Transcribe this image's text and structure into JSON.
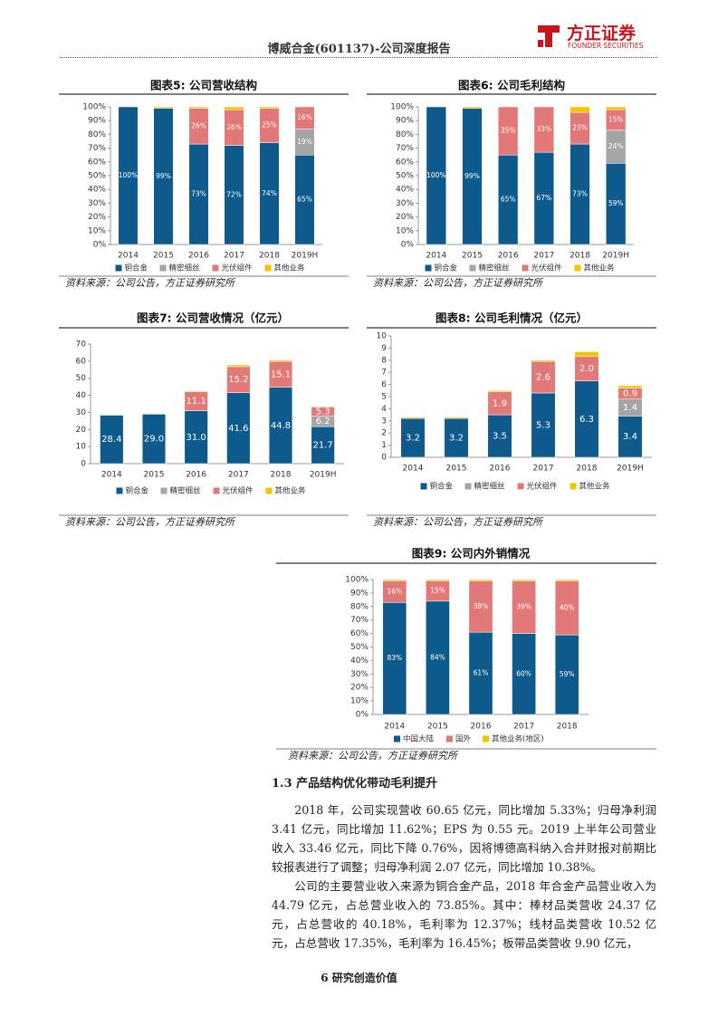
{
  "header": {
    "title": "博威合金(601137)-公司深度报告",
    "logo_name": "方正证券",
    "logo_en": "FOUNDER SECURITIES"
  },
  "chart_data": [
    {
      "type": "bar",
      "stacked": true,
      "title": "图表5:  公司营收结构",
      "source": "资料来源：公司公告，方正证券研究所",
      "categories": [
        "2014",
        "2015",
        "2016",
        "2017",
        "2018",
        "2019H"
      ],
      "ylim": [
        0,
        100
      ],
      "yticks": [
        {
          "value": 0,
          "label": "0%"
        },
        {
          "value": 10,
          "label": "10%"
        },
        {
          "value": 20,
          "label": "20%"
        },
        {
          "value": 30,
          "label": "30%"
        },
        {
          "value": 40,
          "label": "40%"
        },
        {
          "value": 50,
          "label": "50%"
        },
        {
          "value": 60,
          "label": "60%"
        },
        {
          "value": 70,
          "label": "70%"
        },
        {
          "value": 80,
          "label": "80%"
        },
        {
          "value": 90,
          "label": "90%"
        },
        {
          "value": 100,
          "label": "100%"
        }
      ],
      "series": [
        {
          "name": "铜合金",
          "color": "#0e5a8c",
          "values": [
            100,
            99,
            73,
            72,
            74,
            65
          ],
          "value_labels": [
            "100%",
            "99%",
            "73%",
            "72%",
            "74%",
            "65%"
          ]
        },
        {
          "name": "精密细丝",
          "color": "#a5a5a5",
          "values": [
            0,
            0,
            0,
            0,
            0,
            19
          ],
          "value_labels": [
            null,
            null,
            null,
            null,
            null,
            "19%"
          ]
        },
        {
          "name": "光伏组件",
          "color": "#e27878",
          "values": [
            0,
            0,
            26,
            26,
            25,
            16
          ],
          "value_labels": [
            null,
            null,
            "26%",
            "26%",
            "25%",
            "16%"
          ]
        },
        {
          "name": "其他业务",
          "color": "#f5c400",
          "values": [
            0,
            1,
            1,
            2,
            1,
            0
          ],
          "value_labels": [
            null,
            null,
            null,
            null,
            null,
            null
          ]
        }
      ]
    },
    {
      "type": "bar",
      "stacked": true,
      "title": "图表6:  公司毛利结构",
      "source": "资料来源：公司公告，方正证券研究所",
      "categories": [
        "2014",
        "2015",
        "2016",
        "2017",
        "2018",
        "2019H"
      ],
      "ylim": [
        0,
        100
      ],
      "yticks": [
        {
          "value": 0,
          "label": "0%"
        },
        {
          "value": 10,
          "label": "10%"
        },
        {
          "value": 20,
          "label": "20%"
        },
        {
          "value": 30,
          "label": "30%"
        },
        {
          "value": 40,
          "label": "40%"
        },
        {
          "value": 50,
          "label": "50%"
        },
        {
          "value": 60,
          "label": "60%"
        },
        {
          "value": 70,
          "label": "70%"
        },
        {
          "value": 80,
          "label": "80%"
        },
        {
          "value": 90,
          "label": "90%"
        },
        {
          "value": 100,
          "label": "100%"
        }
      ],
      "series": [
        {
          "name": "铜合金",
          "color": "#0e5a8c",
          "values": [
            100,
            99,
            65,
            67,
            73,
            59
          ],
          "value_labels": [
            "100%",
            "99%",
            "65%",
            "67%",
            "73%",
            "59%"
          ]
        },
        {
          "name": "精密细丝",
          "color": "#a5a5a5",
          "values": [
            0,
            0,
            0,
            0,
            0,
            24
          ],
          "value_labels": [
            null,
            null,
            null,
            null,
            null,
            "24%"
          ]
        },
        {
          "name": "光伏组件",
          "color": "#e27878",
          "values": [
            0,
            0,
            35,
            33,
            23,
            15
          ],
          "value_labels": [
            null,
            null,
            "35%",
            "33%",
            "23%",
            "15%"
          ]
        },
        {
          "name": "其他业务",
          "color": "#f5c400",
          "values": [
            0,
            1,
            0,
            0,
            4,
            2
          ],
          "value_labels": [
            null,
            null,
            null,
            null,
            null,
            null
          ]
        }
      ]
    },
    {
      "type": "bar",
      "stacked": true,
      "title": "图表7:  公司营收情况（亿元）",
      "source": "资料来源：公司公告，方正证券研究所",
      "categories": [
        "2014",
        "2015",
        "2016",
        "2017",
        "2018",
        "2019H"
      ],
      "ylim": [
        0,
        70
      ],
      "yticks": [
        0,
        10,
        20,
        30,
        40,
        50,
        60,
        70
      ],
      "series": [
        {
          "name": "铜合金",
          "color": "#0e5a8c",
          "values": [
            28.4,
            29.0,
            31.0,
            41.6,
            44.8,
            21.7
          ],
          "value_labels": [
            "28.4",
            "29.0",
            "31.0",
            "41.6",
            "44.8",
            "21.7"
          ]
        },
        {
          "name": "精密细丝",
          "color": "#a5a5a5",
          "values": [
            0,
            0,
            0,
            0,
            0,
            6.2
          ],
          "value_labels": [
            null,
            null,
            null,
            null,
            null,
            "6.2"
          ]
        },
        {
          "name": "光伏组件",
          "color": "#e27878",
          "values": [
            0,
            0,
            11.1,
            15.2,
            15.1,
            5.3
          ],
          "value_labels": [
            null,
            null,
            "11.1",
            "15.2",
            "15.1",
            "5.3"
          ]
        },
        {
          "name": "其他业务",
          "color": "#f5c400",
          "values": [
            0.3,
            0.3,
            0.5,
            1.0,
            0.8,
            0.3
          ],
          "value_labels": [
            null,
            null,
            null,
            null,
            null,
            null
          ]
        }
      ]
    },
    {
      "type": "bar",
      "stacked": true,
      "title": "图表8:  公司毛利情况（亿元）",
      "source": "资料来源：公司公告，方正证券研究所",
      "categories": [
        "2014",
        "2015",
        "2016",
        "2017",
        "2018",
        "2019H"
      ],
      "ylim": [
        0,
        10
      ],
      "yticks": [
        0,
        1,
        2,
        3,
        4,
        5,
        6,
        7,
        8,
        9,
        10
      ],
      "series": [
        {
          "name": "铜合金",
          "color": "#0e5a8c",
          "values": [
            3.2,
            3.2,
            3.5,
            5.3,
            6.3,
            3.4
          ],
          "value_labels": [
            "3.2",
            "3.2",
            "3.5",
            "5.3",
            "6.3",
            "3.4"
          ]
        },
        {
          "name": "精密细丝",
          "color": "#a5a5a5",
          "values": [
            0,
            0,
            0,
            0,
            0,
            1.4
          ],
          "value_labels": [
            null,
            null,
            null,
            null,
            null,
            "1.4"
          ]
        },
        {
          "name": "光伏组件",
          "color": "#e27878",
          "values": [
            0,
            0,
            1.9,
            2.6,
            2.0,
            0.9
          ],
          "value_labels": [
            null,
            null,
            "1.9",
            "2.6",
            "2.0",
            "0.9"
          ]
        },
        {
          "name": "其他业务",
          "color": "#f5c400",
          "values": [
            0.1,
            0.1,
            0.1,
            0.1,
            0.4,
            0.2
          ],
          "value_labels": [
            null,
            null,
            null,
            null,
            null,
            null
          ]
        }
      ]
    },
    {
      "type": "bar",
      "stacked": true,
      "title": "图表9:  公司内外销情况",
      "source": "资料来源：公司公告，方正证券研究所",
      "categories": [
        "2014",
        "2015",
        "2016",
        "2017",
        "2018"
      ],
      "ylim": [
        0,
        100
      ],
      "yticks": [
        {
          "value": 0,
          "label": "0%"
        },
        {
          "value": 10,
          "label": "10%"
        },
        {
          "value": 20,
          "label": "20%"
        },
        {
          "value": 30,
          "label": "30%"
        },
        {
          "value": 40,
          "label": "40%"
        },
        {
          "value": 50,
          "label": "50%"
        },
        {
          "value": 60,
          "label": "60%"
        },
        {
          "value": 70,
          "label": "70%"
        },
        {
          "value": 80,
          "label": "80%"
        },
        {
          "value": 90,
          "label": "90%"
        },
        {
          "value": 100,
          "label": "100%"
        }
      ],
      "series": [
        {
          "name": "中国大陆",
          "color": "#0e5a8c",
          "values": [
            83,
            84,
            61,
            60,
            59
          ],
          "value_labels": [
            "83%",
            "84%",
            "61%",
            "60%",
            "59%"
          ]
        },
        {
          "name": "国外",
          "color": "#e27878",
          "values": [
            16,
            15,
            38,
            39,
            40
          ],
          "value_labels": [
            "16%",
            "15%",
            "38%",
            "39%",
            "40%"
          ]
        },
        {
          "name": "其他业务(地区)",
          "color": "#f5c400",
          "values": [
            1,
            1,
            1,
            1,
            1
          ],
          "value_labels": [
            null,
            null,
            null,
            null,
            null
          ]
        }
      ]
    }
  ],
  "section": {
    "title": "1.3 产品结构优化带动毛利提升",
    "paragraphs": [
      "2018 年，公司实现营收 60.65 亿元，同比增加 5.33%；归母净利润 3.41 亿元，同比增加 11.62%；EPS 为 0.55 元。2019 上半年公司营业收入 33.46 亿元，同比下降 0.76%，因将博德高科纳入合并财报对前期比较报表进行了调整；归母净利润 2.07 亿元，同比增加 10.38%。",
      "公司的主要营业收入来源为铜合金产品，2018 年合金产品营业收入为 44.79 亿元，占总营业收入的 73.85%。其中：棒材品类营收 24.37 亿元，占总营收的 40.18%，毛利率为 12.37%；线材品类营收 10.52 亿元，占总营收 17.35%，毛利率为 16.45%；板带品类营收 9.90 亿元，"
    ]
  },
  "footer": {
    "page": "6",
    "slogan": "研究创造价值"
  }
}
